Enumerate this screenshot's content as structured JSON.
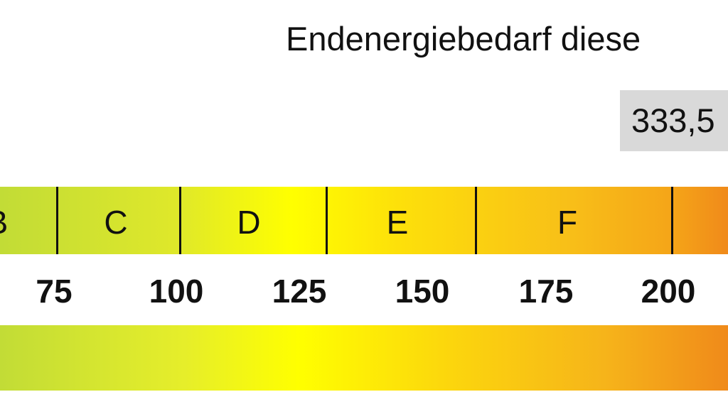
{
  "title": "Endenergiebedarf diese",
  "value_display": "333,5",
  "chart_data": {
    "type": "bar",
    "title": "Endenergiebedarf diese",
    "classes": [
      "B",
      "C",
      "D",
      "E",
      "F"
    ],
    "ticks": [
      "75",
      "100",
      "125",
      "150",
      "175",
      "200"
    ],
    "colors": {
      "green": "#c2dc36",
      "yellow": "#ffff00",
      "orange": "#f08a1a",
      "value_box": "#d9d9d9"
    }
  }
}
